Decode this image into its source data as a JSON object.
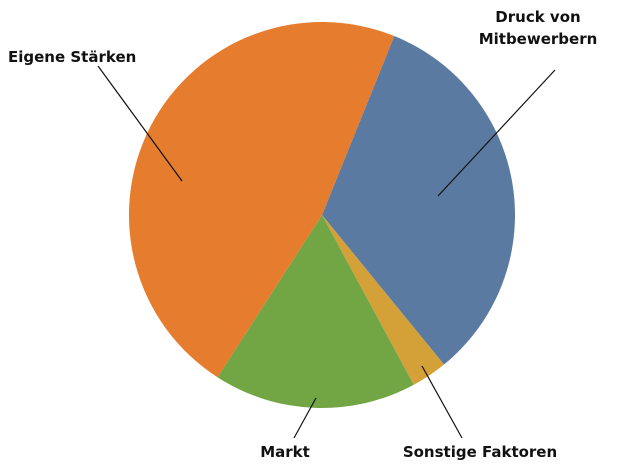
{
  "chart_data": {
    "type": "pie",
    "title": "",
    "slices": [
      {
        "label": "Druck von Mitbewerbern",
        "lines": [
          "Druck von",
          "Mitbewerbern"
        ],
        "value": 33,
        "color": "#5b7aa1"
      },
      {
        "label": "Sonstige Faktoren",
        "lines": [
          "Sonstige Faktoren"
        ],
        "value": 3,
        "color": "#d4a038"
      },
      {
        "label": "Markt",
        "lines": [
          "Markt"
        ],
        "value": 17,
        "color": "#72a645"
      },
      {
        "label": "Eigene Stärken",
        "lines": [
          "Eigene Stärken"
        ],
        "value": 47,
        "color": "#e67c2d"
      }
    ],
    "start_angle_deg": 22,
    "direction": "clockwise",
    "legend": "none",
    "labels": "outside-with-leader-lines"
  }
}
